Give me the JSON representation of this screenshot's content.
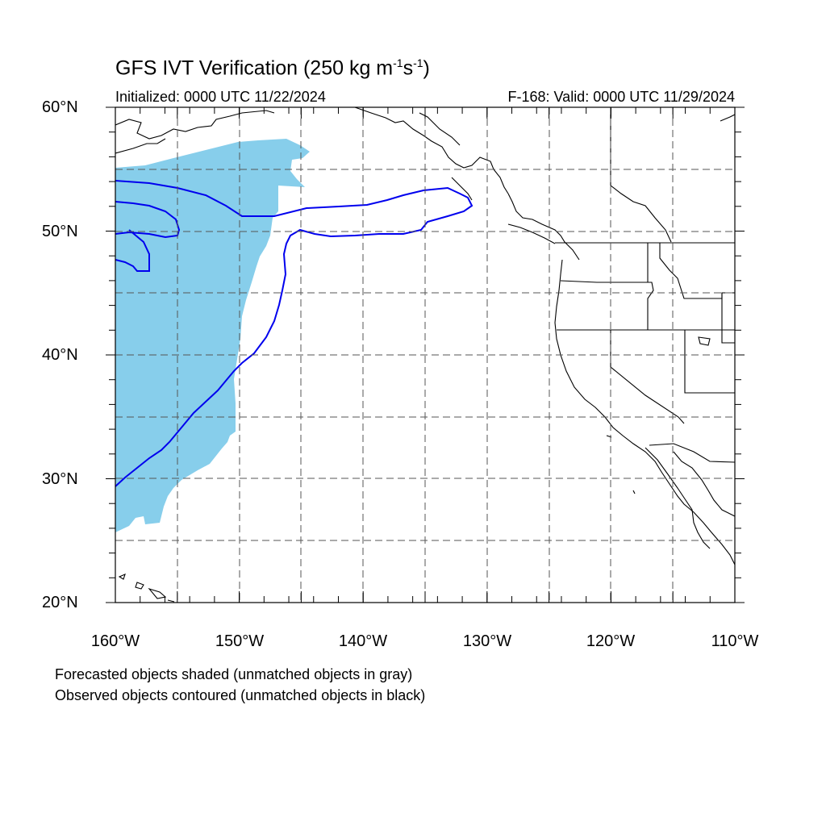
{
  "header": {
    "title_prefix": "GFS IVT Verification (250 kg m",
    "title_exp1": "-1",
    "title_mid": "s",
    "title_exp2": "-1",
    "title_suffix": ")",
    "initialized": "Initialized: 0000 UTC 11/22/2024",
    "valid": "F-168: Valid: 0000 UTC 11/29/2024"
  },
  "axes": {
    "lat_labels": [
      "60°N",
      "50°N",
      "40°N",
      "30°N",
      "20°N"
    ],
    "lon_labels": [
      "160°W",
      "150°W",
      "140°W",
      "130°W",
      "120°W",
      "110°W"
    ],
    "lon_range": [
      -160,
      -110
    ],
    "lat_range": [
      20,
      60
    ]
  },
  "colors": {
    "forecast_fill": "#87ceeb",
    "observed_contour": "#0000ee",
    "coastline": "#000000",
    "grid": "#555555"
  },
  "legend": {
    "line1": "Forecasted objects shaded (unmatched objects in gray)",
    "line2": "Observed objects contoured (unmatched objects in black)"
  }
}
